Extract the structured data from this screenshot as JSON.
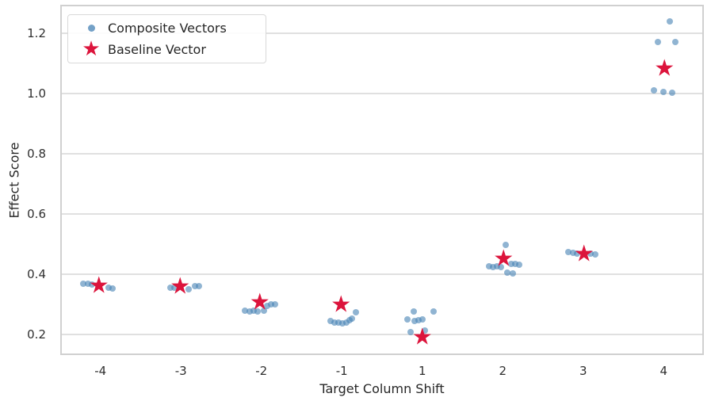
{
  "chart_data": {
    "type": "scatter",
    "title": "",
    "xlabel": "Target Column Shift",
    "ylabel": "Effect Score",
    "x_tick_labels": [
      "-4",
      "-3",
      "-2",
      "-1",
      "1",
      "2",
      "3",
      "4"
    ],
    "y_ticks": [
      0.2,
      0.4,
      0.6,
      0.8,
      1.0,
      1.2
    ],
    "y_tick_labels": [
      "0.2",
      "0.4",
      "0.6",
      "0.8",
      "1.0",
      "1.2"
    ],
    "ylim": [
      0.132,
      1.295
    ],
    "grid": "horizontal",
    "legend": {
      "position": "upper-left",
      "entries": [
        {
          "label": "Composite Vectors",
          "marker": "circle",
          "color": "#6d9ec9"
        },
        {
          "label": "Baseline Vector",
          "marker": "star",
          "color": "#dc143c"
        }
      ]
    },
    "series": [
      {
        "name": "Composite Vectors",
        "marker": "circle",
        "color": "rgba(70,130,180,0.60)",
        "points": [
          [
            -0.21,
            0.37
          ],
          [
            -0.16,
            0.368
          ],
          [
            -0.11,
            0.366
          ],
          [
            0.1,
            0.356
          ],
          [
            0.15,
            0.354
          ],
          [
            0.87,
            0.356
          ],
          [
            0.92,
            0.355
          ],
          [
            1.1,
            0.35
          ],
          [
            1.17,
            0.36
          ],
          [
            1.22,
            0.361
          ],
          [
            1.8,
            0.279
          ],
          [
            1.85,
            0.276
          ],
          [
            1.9,
            0.279
          ],
          [
            1.95,
            0.276
          ],
          [
            2.03,
            0.279
          ],
          [
            2.07,
            0.295
          ],
          [
            2.12,
            0.3
          ],
          [
            2.17,
            0.3
          ],
          [
            2.86,
            0.245
          ],
          [
            2.91,
            0.239
          ],
          [
            2.96,
            0.239
          ],
          [
            3.01,
            0.237
          ],
          [
            3.06,
            0.239
          ],
          [
            3.1,
            0.247
          ],
          [
            3.13,
            0.253
          ],
          [
            3.17,
            0.274
          ],
          [
            3.82,
            0.25
          ],
          [
            3.85,
            0.208
          ],
          [
            3.89,
            0.277
          ],
          [
            3.9,
            0.245
          ],
          [
            3.95,
            0.247
          ],
          [
            4.0,
            0.25
          ],
          [
            4.03,
            0.213
          ],
          [
            4.14,
            0.277
          ],
          [
            4.83,
            0.426
          ],
          [
            4.88,
            0.424
          ],
          [
            4.93,
            0.426
          ],
          [
            4.98,
            0.424
          ],
          [
            5.04,
            0.497
          ],
          [
            5.06,
            0.405
          ],
          [
            5.11,
            0.434
          ],
          [
            5.13,
            0.403
          ],
          [
            5.16,
            0.434
          ],
          [
            5.2,
            0.432
          ],
          [
            5.82,
            0.474
          ],
          [
            5.87,
            0.472
          ],
          [
            5.92,
            0.47
          ],
          [
            6.09,
            0.468
          ],
          [
            6.15,
            0.466
          ],
          [
            6.88,
            1.011
          ],
          [
            6.93,
            1.171
          ],
          [
            7.0,
            1.006
          ],
          [
            7.08,
            1.24
          ],
          [
            7.11,
            1.003
          ],
          [
            7.15,
            1.171
          ]
        ]
      },
      {
        "name": "Baseline Vector",
        "marker": "star",
        "color": "#dc143c",
        "points": [
          [
            -0.02,
            0.362
          ],
          [
            0.99,
            0.358
          ],
          [
            1.98,
            0.305
          ],
          [
            2.99,
            0.297
          ],
          [
            4.0,
            0.19
          ],
          [
            5.01,
            0.451
          ],
          [
            6.01,
            0.467
          ],
          [
            7.01,
            1.082
          ]
        ]
      }
    ]
  }
}
